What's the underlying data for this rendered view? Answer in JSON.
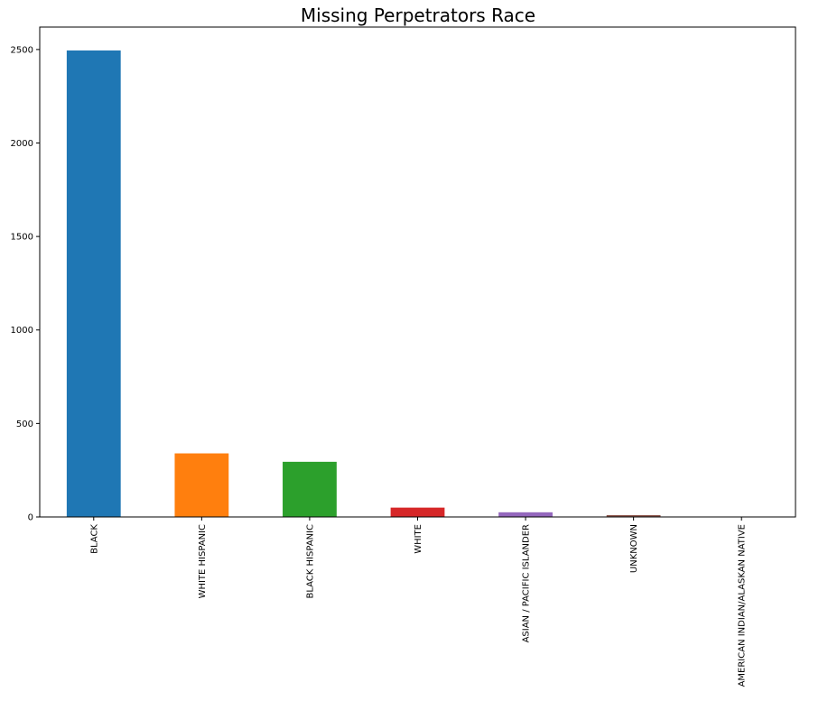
{
  "chart_data": {
    "type": "bar",
    "title": "Missing Perpetrators Race",
    "xlabel": "",
    "ylabel": "",
    "categories": [
      "BLACK",
      "WHITE HISPANIC",
      "BLACK HISPANIC",
      "WHITE",
      "ASIAN / PACIFIC ISLANDER",
      "UNKNOWN",
      "AMERICAN INDIAN/ALASKAN NATIVE"
    ],
    "values": [
      2495,
      340,
      295,
      50,
      25,
      10,
      1
    ],
    "colors": [
      "#1f77b4",
      "#ff7f0e",
      "#2ca02c",
      "#d62728",
      "#9467bd",
      "#8c564b",
      "#e377c2"
    ],
    "ylim": [
      0,
      2620
    ],
    "yticks": [
      0,
      500,
      1000,
      1500,
      2000,
      2500
    ],
    "grid": false,
    "legend": "none"
  }
}
